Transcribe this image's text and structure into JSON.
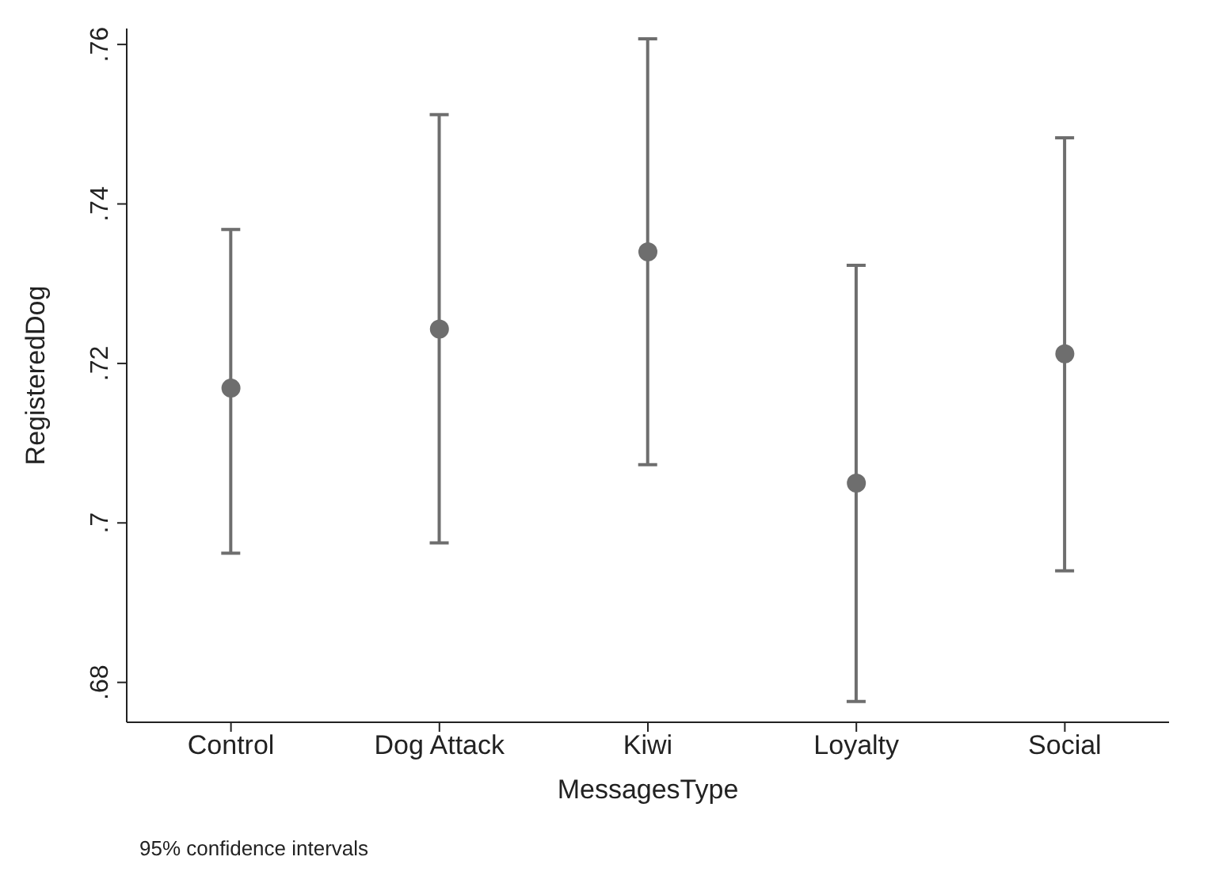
{
  "chart_data": {
    "type": "scatter",
    "xlabel": "MessagesType",
    "ylabel": "RegisteredDog",
    "categories": [
      "Control",
      "Dog Attack",
      "Kiwi",
      "Loyalty",
      "Social"
    ],
    "series": [
      {
        "color": "#6e6e6e",
        "values": [
          0.7169,
          0.7243,
          0.734,
          0.705,
          0.7212
        ],
        "errors": [
          [
            0.6962,
            0.7368
          ],
          [
            0.6975,
            0.7512
          ],
          [
            0.7073,
            0.7607
          ],
          [
            0.6776,
            0.7323
          ],
          [
            0.694,
            0.7483
          ]
        ]
      }
    ],
    "ylim": [
      0.675,
      0.762
    ],
    "yticks": [
      {
        "value": 0.68,
        "label": ".68"
      },
      {
        "value": 0.7,
        "label": ".7"
      },
      {
        "value": 0.72,
        "label": ".72"
      },
      {
        "value": 0.74,
        "label": ".74"
      },
      {
        "value": 0.76,
        "label": ".76"
      }
    ],
    "marker": "circle",
    "grid": false,
    "legend": false,
    "annotations": [
      "95% confidence intervals"
    ]
  }
}
